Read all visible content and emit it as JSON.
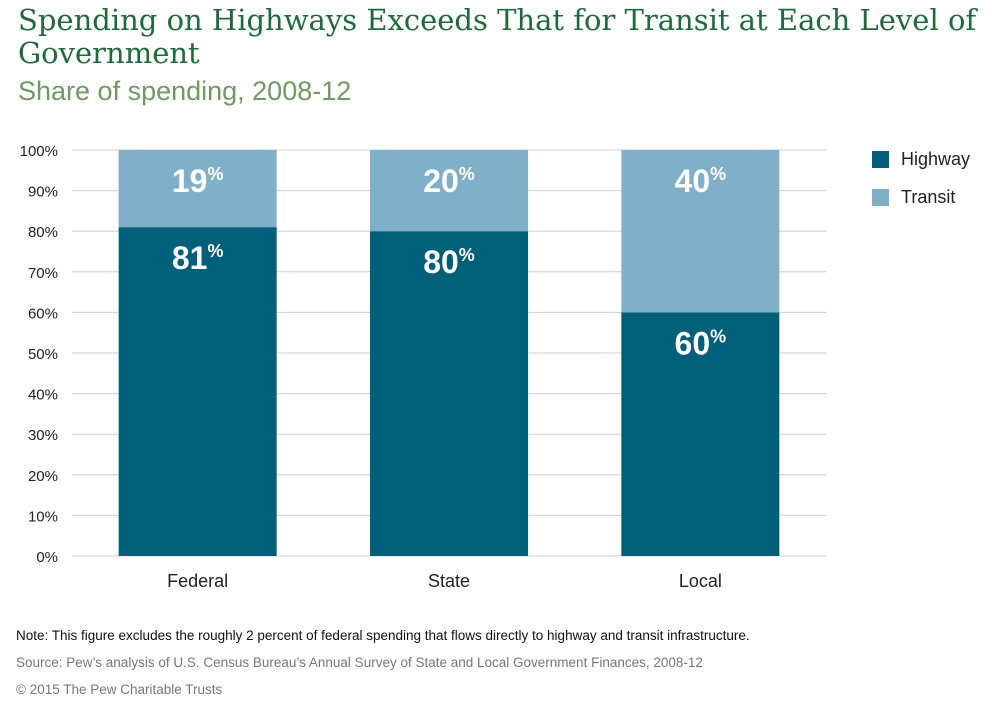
{
  "title": "Spending on Highways Exceeds That for Transit at Each Level of Government",
  "subtitle": "Share of spending, 2008-12",
  "colors": {
    "title": "#1e6b3a",
    "subtitle": "#6f9a62",
    "highway": "#00607a",
    "transit": "#7fb0c8",
    "grid": "#cfcfcf"
  },
  "legend": {
    "highway": "Highway",
    "transit": "Transit"
  },
  "chart_data": {
    "type": "bar",
    "stacked": true,
    "categories": [
      "Federal",
      "State",
      "Local"
    ],
    "series": [
      {
        "name": "Highway",
        "values": [
          81,
          80,
          60
        ],
        "labels": [
          "81",
          "80",
          "60"
        ]
      },
      {
        "name": "Transit",
        "values": [
          19,
          20,
          40
        ],
        "labels": [
          "19",
          "20",
          "40"
        ]
      }
    ],
    "label_suffix": "%",
    "y_ticks": [
      "0%",
      "10%",
      "20%",
      "30%",
      "40%",
      "50%",
      "60%",
      "70%",
      "80%",
      "90%",
      "100%"
    ],
    "ylim": [
      0,
      100
    ],
    "grid": true,
    "legend_position": "right"
  },
  "notes": {
    "note": "Note: This figure excludes the roughly 2 percent of federal spending that flows directly to highway and transit infrastructure.",
    "source": "Source: Pew’s analysis of U.S. Census Bureau’s Annual Survey of State and Local Government Finances, 2008-12",
    "copyright": "© 2015 The Pew Charitable Trusts"
  }
}
